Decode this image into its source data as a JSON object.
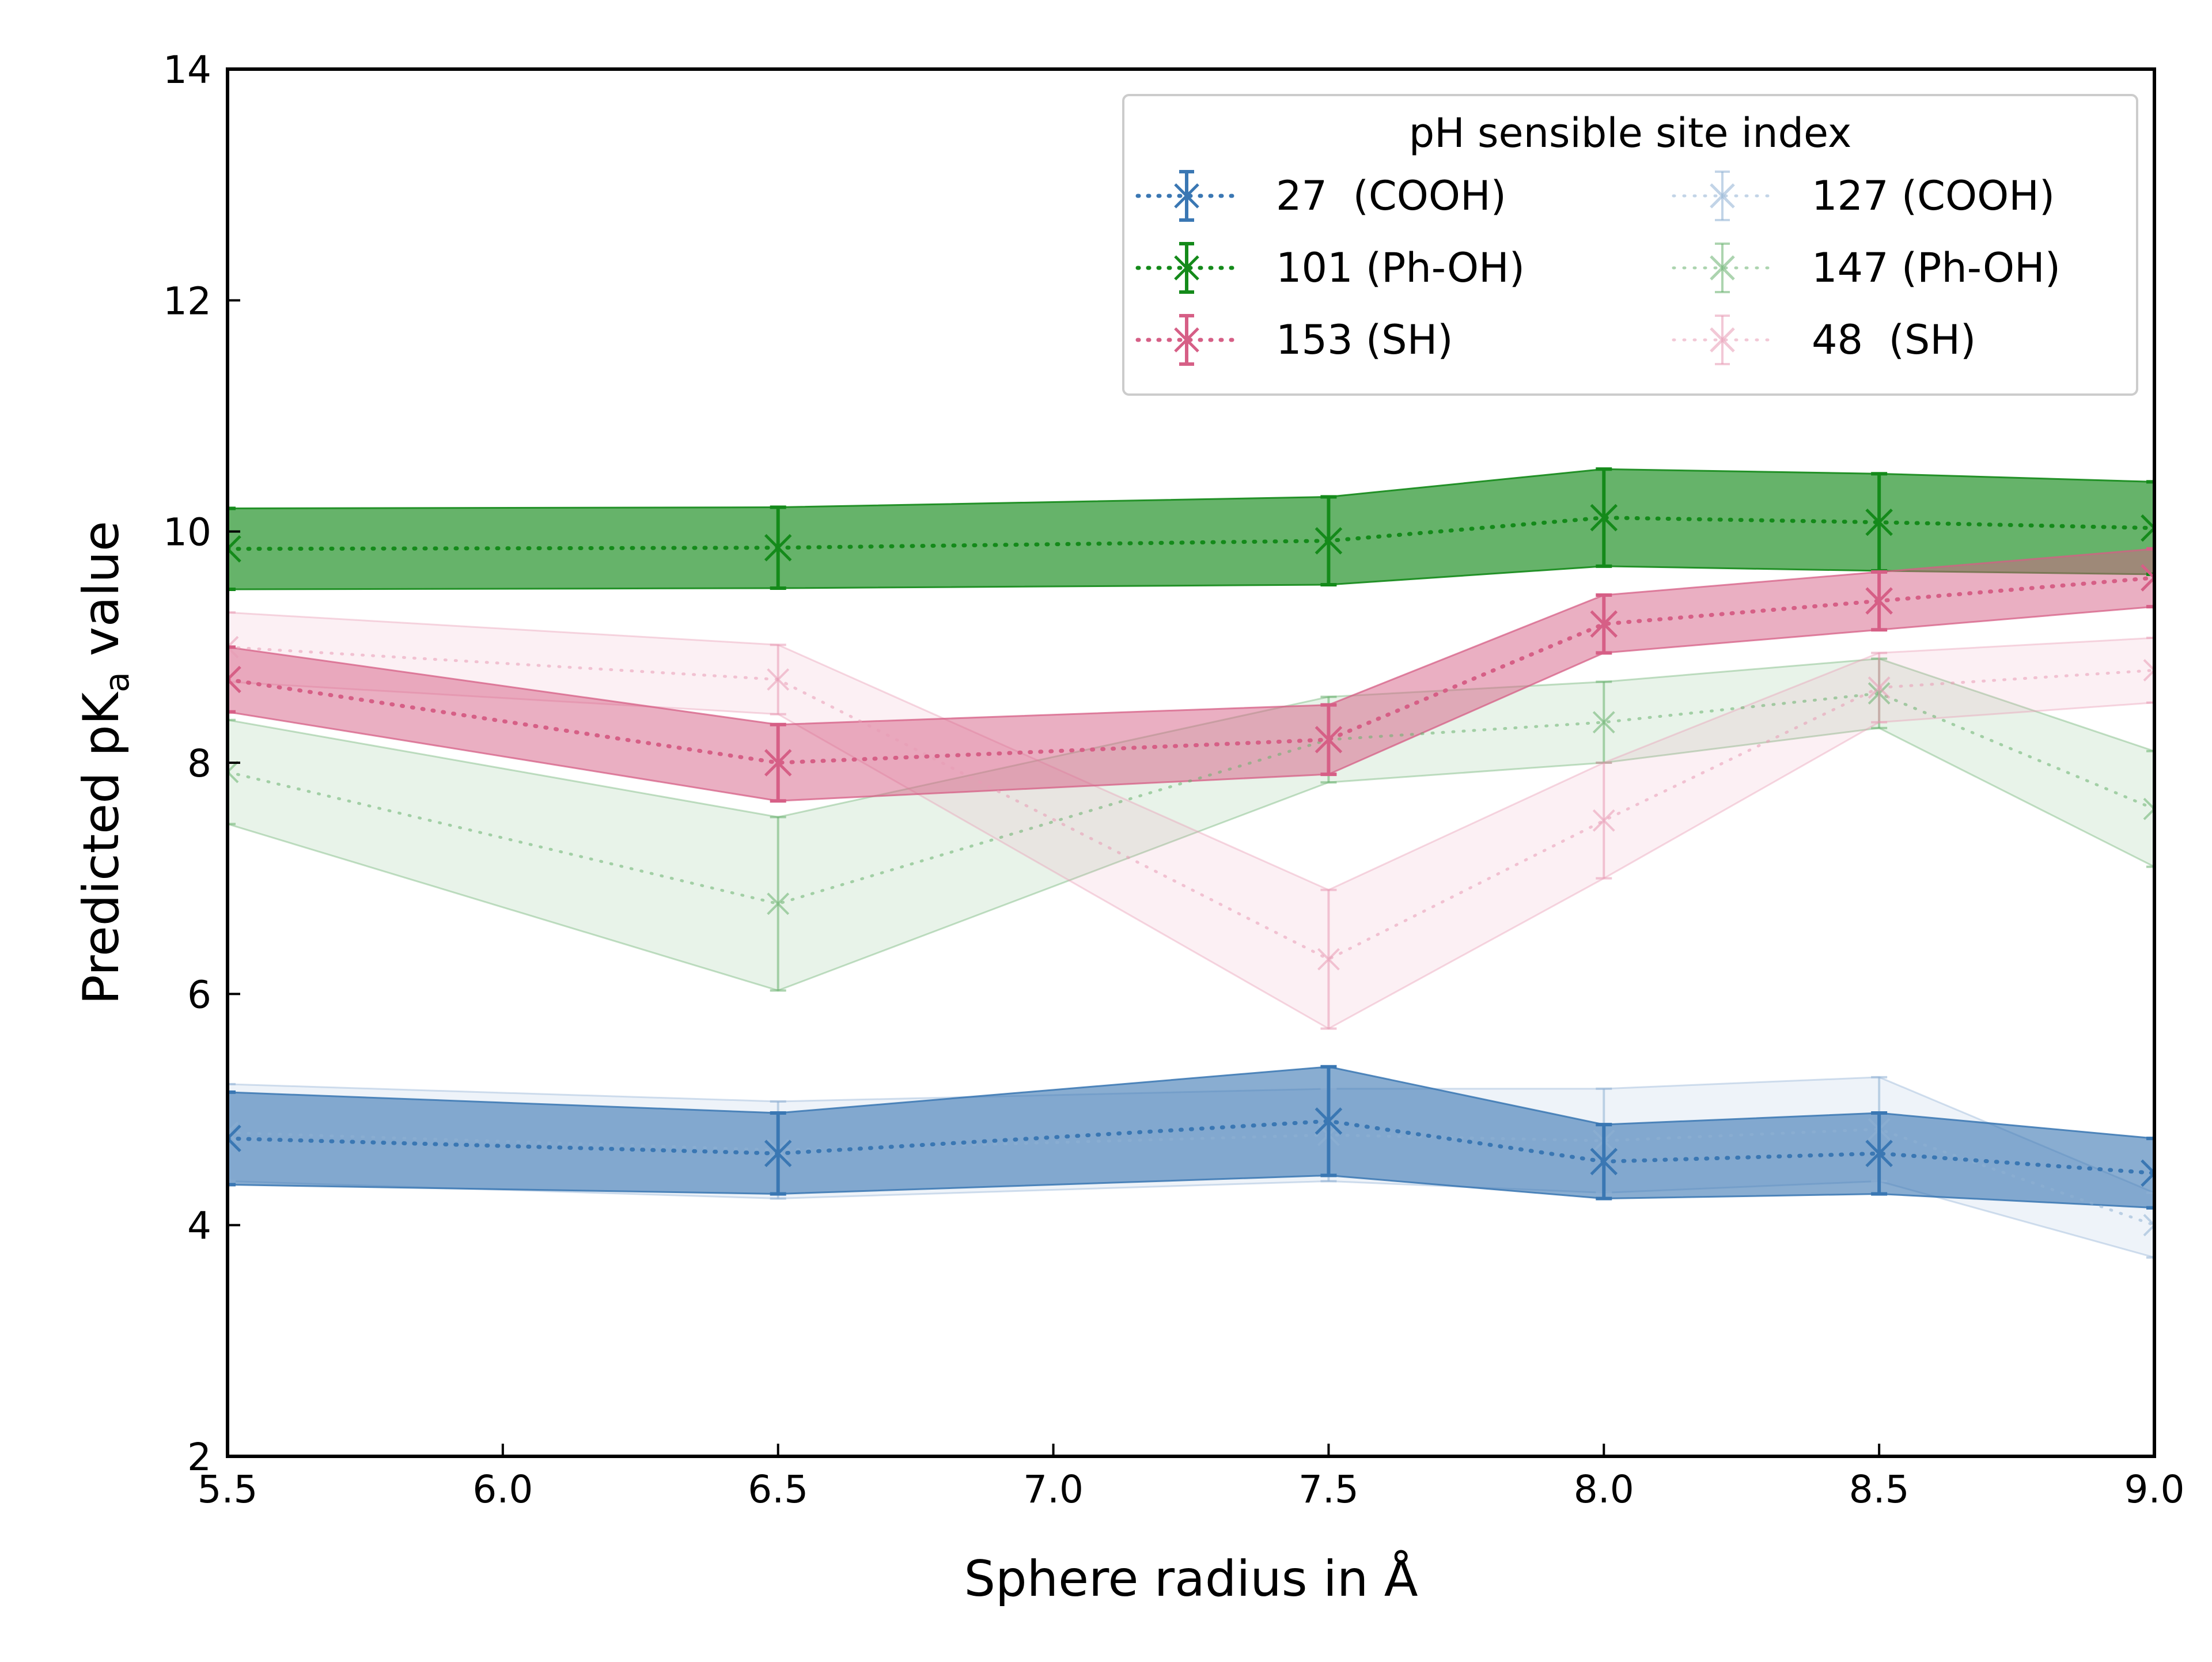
{
  "chart_data": {
    "type": "line",
    "xlabel": "Sphere radius in Å",
    "ylabel_prefix": "Predicted pK",
    "ylabel_sub": "a",
    "ylabel_suffix": " value",
    "xlim": [
      5.5,
      9.0
    ],
    "ylim": [
      2,
      14
    ],
    "x": [
      5.5,
      6.5,
      7.5,
      8.0,
      8.5,
      9.0
    ],
    "x_ticks": [
      "5.5",
      "6.0",
      "6.5",
      "7.0",
      "7.5",
      "8.0",
      "8.5",
      "9.0"
    ],
    "y_ticks": [
      "2",
      "4",
      "6",
      "8",
      "10",
      "12",
      "14"
    ],
    "legend_title": "pH sensible site index",
    "legend_position": "top-right",
    "series": [
      {
        "name": "27  (COOH)",
        "color": "#3a77b3",
        "opacity": 0.6,
        "linewidth": 7,
        "values": [
          4.75,
          4.62,
          4.9,
          4.55,
          4.62,
          4.45
        ],
        "errors": [
          0.4,
          0.35,
          0.47,
          0.32,
          0.35,
          0.3
        ]
      },
      {
        "name": "101 (Ph-OH)",
        "color": "#148a1a",
        "opacity": 0.65,
        "linewidth": 7,
        "values": [
          9.85,
          9.86,
          9.92,
          10.12,
          10.08,
          10.03
        ],
        "errors": [
          0.35,
          0.35,
          0.38,
          0.42,
          0.42,
          0.4
        ]
      },
      {
        "name": "153 (SH)",
        "color": "#d65f86",
        "opacity": 0.5,
        "linewidth": 7,
        "values": [
          8.72,
          8.0,
          8.2,
          9.2,
          9.4,
          9.6
        ],
        "errors": [
          0.28,
          0.33,
          0.3,
          0.25,
          0.25,
          0.25
        ]
      },
      {
        "name": "127 (COOH)",
        "color": "#8fb0d4",
        "opacity": 0.15,
        "linewidth": 5,
        "values": [
          4.8,
          4.65,
          4.78,
          4.73,
          4.83,
          4.0
        ],
        "errors": [
          0.42,
          0.42,
          0.4,
          0.45,
          0.45,
          0.28
        ]
      },
      {
        "name": "147 (Ph-OH)",
        "color": "#68b06d",
        "opacity": 0.15,
        "linewidth": 5,
        "values": [
          7.92,
          6.78,
          8.2,
          8.35,
          8.6,
          7.6
        ],
        "errors": [
          0.45,
          0.75,
          0.37,
          0.35,
          0.3,
          0.5
        ]
      },
      {
        "name": "48  (SH)",
        "color": "#e89ab5",
        "opacity": 0.15,
        "linewidth": 5,
        "values": [
          9.0,
          8.72,
          6.3,
          7.5,
          8.65,
          8.8
        ],
        "errors": [
          0.3,
          0.3,
          0.6,
          0.5,
          0.3,
          0.28
        ]
      }
    ]
  }
}
